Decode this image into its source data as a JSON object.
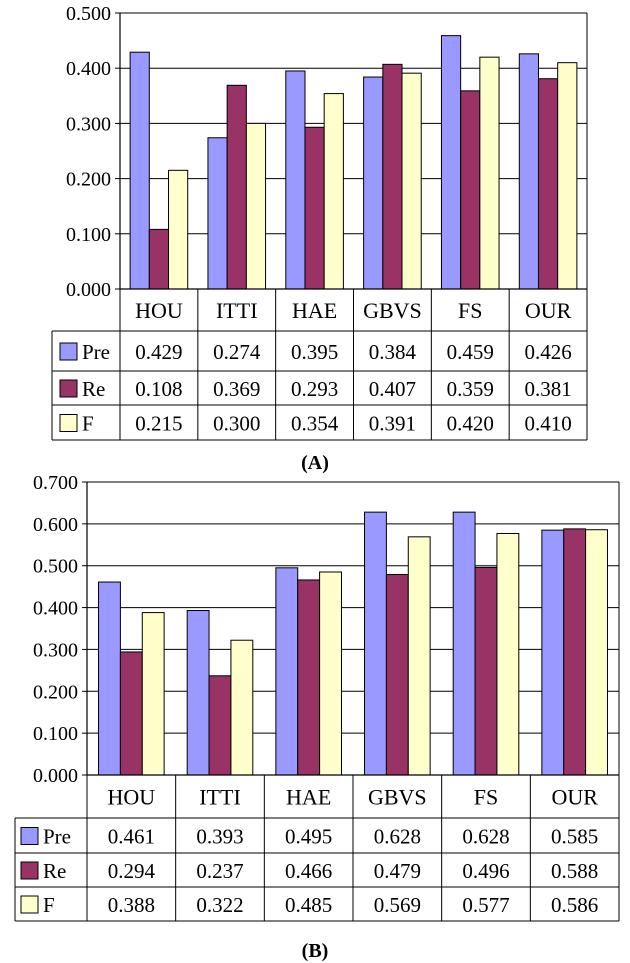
{
  "figure": {
    "panels": [
      {
        "caption": "(A)"
      },
      {
        "caption": "(B)"
      }
    ]
  },
  "colors": {
    "Pre": "#9999ff",
    "Re": "#993366",
    "F": "#ffffcc",
    "grid": "#000000",
    "plot_bg": "#ffffff"
  },
  "chart_data": [
    {
      "type": "bar",
      "caption": "(A)",
      "categories": [
        "HOU",
        "ITTI",
        "HAE",
        "GBVS",
        "FS",
        "OUR"
      ],
      "ylim": [
        0,
        0.5
      ],
      "yticks": [
        "0.000",
        "0.100",
        "0.200",
        "0.300",
        "0.400",
        "0.500"
      ],
      "grid": true,
      "legend": "data-table",
      "series": [
        {
          "name": "Pre",
          "values": [
            0.429,
            0.274,
            0.395,
            0.384,
            0.459,
            0.426
          ],
          "labels": [
            "0.429",
            "0.274",
            "0.395",
            "0.384",
            "0.459",
            "0.426"
          ]
        },
        {
          "name": "Re",
          "values": [
            0.108,
            0.369,
            0.293,
            0.407,
            0.359,
            0.381
          ],
          "labels": [
            "0.108",
            "0.369",
            "0.293",
            "0.407",
            "0.359",
            "0.381"
          ]
        },
        {
          "name": "F",
          "values": [
            0.215,
            0.3,
            0.354,
            0.391,
            0.42,
            0.41
          ],
          "labels": [
            "0.215",
            "0.300",
            "0.354",
            "0.391",
            "0.420",
            "0.410"
          ]
        }
      ]
    },
    {
      "type": "bar",
      "caption": "(B)",
      "categories": [
        "HOU",
        "ITTI",
        "HAE",
        "GBVS",
        "FS",
        "OUR"
      ],
      "ylim": [
        0,
        0.7
      ],
      "yticks": [
        "0.000",
        "0.100",
        "0.200",
        "0.300",
        "0.400",
        "0.500",
        "0.600",
        "0.700"
      ],
      "grid": true,
      "legend": "data-table",
      "series": [
        {
          "name": "Pre",
          "values": [
            0.461,
            0.393,
            0.495,
            0.628,
            0.628,
            0.585
          ],
          "labels": [
            "0.461",
            "0.393",
            "0.495",
            "0.628",
            "0.628",
            "0.585"
          ]
        },
        {
          "name": "Re",
          "values": [
            0.294,
            0.237,
            0.466,
            0.479,
            0.496,
            0.588
          ],
          "labels": [
            "0.294",
            "0.237",
            "0.466",
            "0.479",
            "0.496",
            "0.588"
          ]
        },
        {
          "name": "F",
          "values": [
            0.388,
            0.322,
            0.485,
            0.569,
            0.577,
            0.586
          ],
          "labels": [
            "0.388",
            "0.322",
            "0.485",
            "0.569",
            "0.577",
            "0.586"
          ]
        }
      ]
    }
  ]
}
